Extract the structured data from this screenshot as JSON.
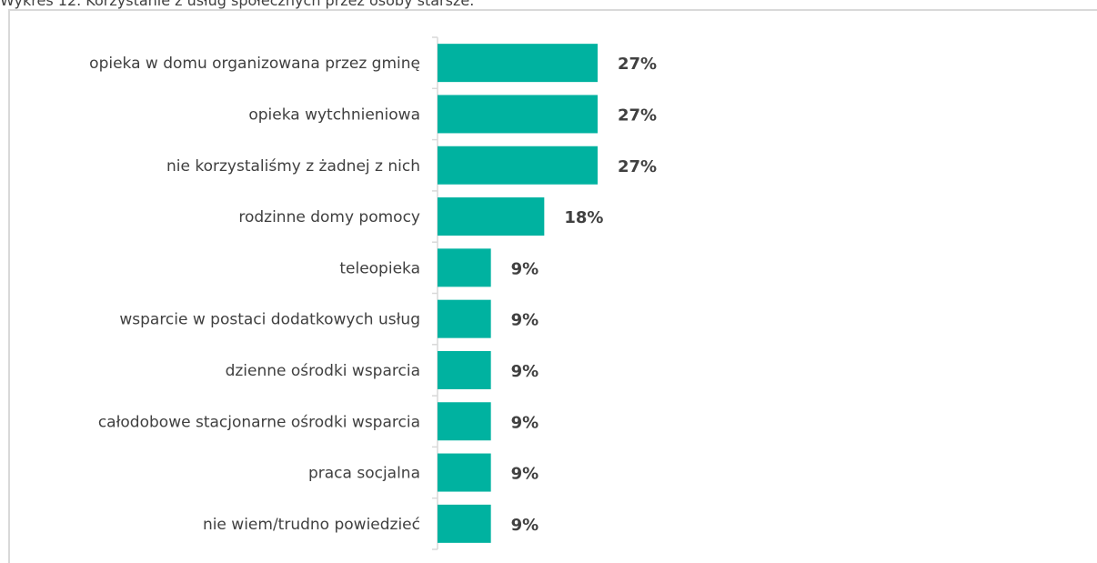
{
  "caption": "Wykres 12. Korzystanie z usług społecznych przez osoby starsze.",
  "chart_data": {
    "type": "bar",
    "orientation": "horizontal",
    "categories": [
      "opieka w domu organizowana przez gminę",
      "opieka wytchnieniowa",
      "nie korzystaliśmy z żadnej z nich",
      "rodzinne domy pomocy",
      "teleopieka",
      "wsparcie w postaci dodatkowych usług",
      "dzienne ośrodki wsparcia",
      "całodobowe stacjonarne ośrodki wsparcia",
      "praca socjalna",
      "nie wiem/trudno powiedzieć"
    ],
    "values": [
      27,
      27,
      27,
      18,
      9,
      9,
      9,
      9,
      9,
      9
    ],
    "value_labels": [
      "27%",
      "27%",
      "27%",
      "18%",
      "9%",
      "9%",
      "9%",
      "9%",
      "9%",
      "9%"
    ],
    "unit": "%",
    "xlim": [
      0,
      100
    ],
    "grid": false,
    "legend": "none",
    "bar_color": "#00B2A0"
  }
}
